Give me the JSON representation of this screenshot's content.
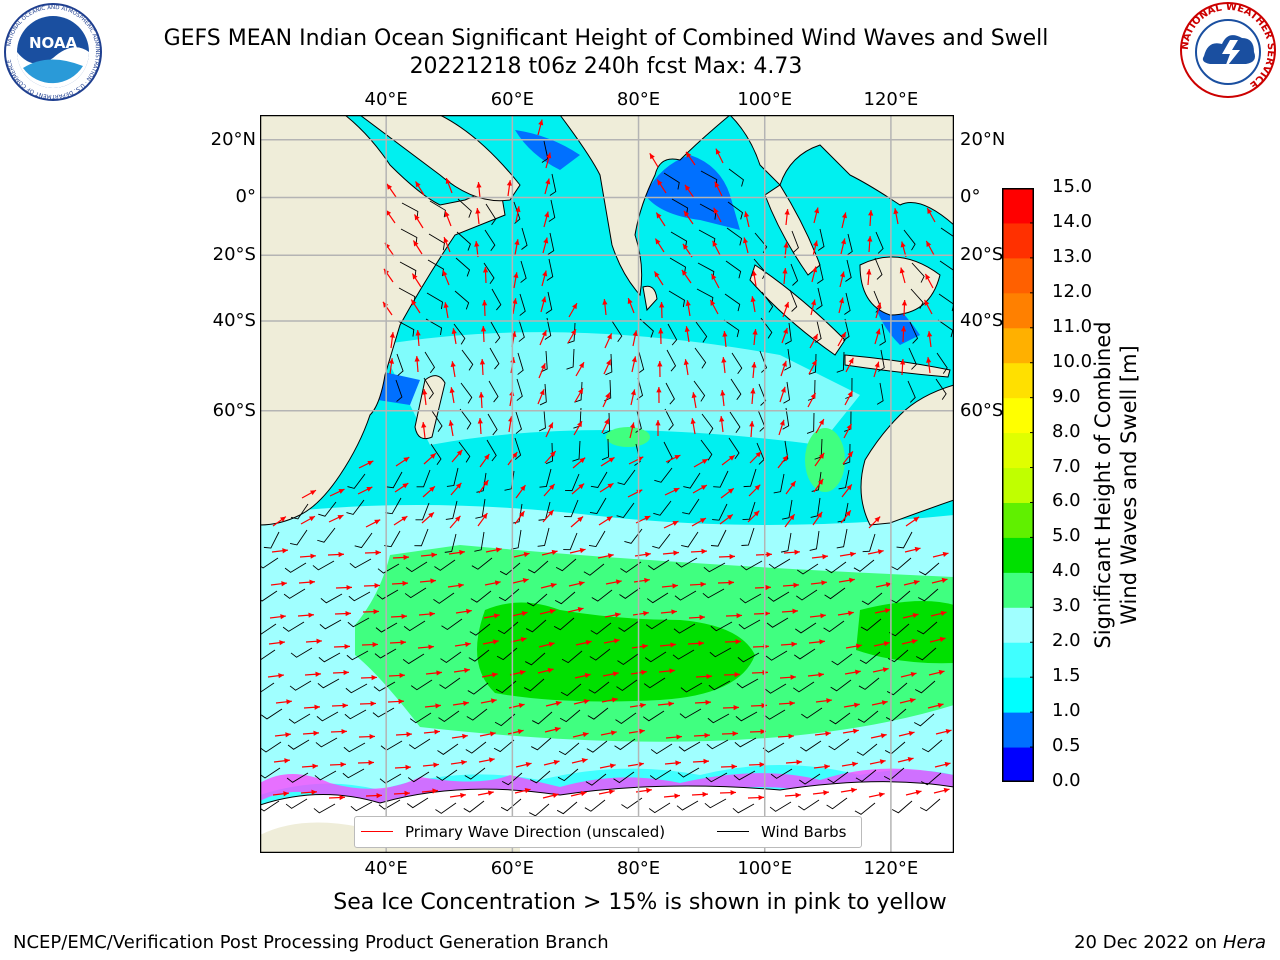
{
  "header": {
    "title_line1": "GEFS MEAN Indian Ocean Significant Height of Combined Wind Waves and Swell",
    "title_line2": "20221218 t06z 240h fcst   Max: 4.73"
  },
  "logos": {
    "left": {
      "name": "noaa-logo",
      "text": "NOAA",
      "ring_text": "NATIONAL OCEANIC AND ATMOSPHERIC ADMINISTRATION · U.S. DEPARTMENT OF COMMERCE"
    },
    "right": {
      "name": "nws-logo",
      "ring_text": "NATIONAL WEATHER SERVICE"
    }
  },
  "map": {
    "lon_range": [
      20,
      130
    ],
    "lat_range": [
      -88,
      28
    ],
    "lon_ticks": [
      {
        "lon": 40,
        "label": "40°E"
      },
      {
        "lon": 60,
        "label": "60°E"
      },
      {
        "lon": 80,
        "label": "80°E"
      },
      {
        "lon": 100,
        "label": "100°E"
      },
      {
        "lon": 120,
        "label": "120°E"
      }
    ],
    "lat_ticks": [
      {
        "lat": 20,
        "label": "20°N"
      },
      {
        "lat": 0,
        "label": "0°"
      },
      {
        "lat": -20,
        "label": "20°S"
      },
      {
        "lat": -40,
        "label": "40°S"
      },
      {
        "lat": -60,
        "label": "60°S"
      }
    ],
    "colors": {
      "land": "#efedd9",
      "ocean": "#00f0f0",
      "gridline": "#b4b4b4",
      "wave_arrow": "#ff0000",
      "wind_barb": "#000000"
    }
  },
  "legend": {
    "wave_direction": "Primary Wave Direction (unscaled)",
    "wind_barbs": "Wind Barbs"
  },
  "colorbar": {
    "title_line1": "Significant Height of Combined",
    "title_line2": "Wind Waves and Swell [m]",
    "levels": [
      0,
      0.5,
      1,
      1.5,
      2,
      3,
      4,
      5,
      6,
      7,
      8,
      9,
      10,
      11,
      12,
      13,
      14,
      15
    ],
    "labels": [
      "0.0",
      "0.5",
      "1.0",
      "1.5",
      "2.0",
      "3.0",
      "4.0",
      "5.0",
      "6.0",
      "7.0",
      "8.0",
      "9.0",
      "10.0",
      "11.0",
      "12.0",
      "13.0",
      "14.0",
      "15.0"
    ],
    "colors": [
      "#0000ff",
      "#0070ff",
      "#00ffff",
      "#40ffff",
      "#a0ffff",
      "#40ff80",
      "#00e000",
      "#60f000",
      "#c0ff00",
      "#e0ff00",
      "#ffff00",
      "#ffe000",
      "#ffb000",
      "#ff8000",
      "#ff6000",
      "#ff3000",
      "#ff0000"
    ]
  },
  "caption": "Sea Ice Concentration > 15% is shown in pink to yellow",
  "footer": {
    "left": "NCEP/EMC/Verification Post Processing Product Generation Branch",
    "date": "20 Dec 2022 on",
    "system": "Hera"
  }
}
